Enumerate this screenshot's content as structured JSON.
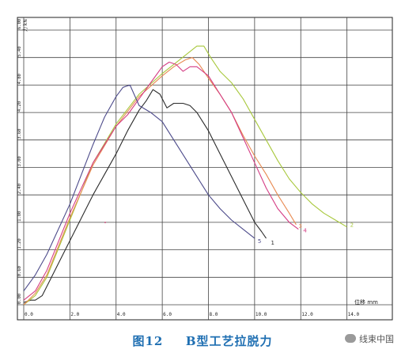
{
  "chart_data": {
    "type": "line",
    "title": "",
    "xlabel": "位移 mm",
    "ylabel": "力 kN",
    "xlim": [
      0,
      16
    ],
    "ylim": [
      0,
      6.0
    ],
    "x_ticks": [
      0,
      2,
      4,
      6,
      8,
      10,
      12,
      14
    ],
    "x_tick_labels": [
      "0.0",
      "2.0",
      "4.0",
      "6.0",
      "8.0",
      "10.0",
      "12.0",
      "14.0"
    ],
    "y_ticks": [
      0,
      0.6,
      1.2,
      1.8,
      2.4,
      3.0,
      3.6,
      4.2,
      4.8,
      5.4,
      6.0
    ],
    "y_tick_labels": [
      "0.00",
      "0.60",
      "1.20",
      "1.80",
      "2.40",
      "3.00",
      "3.60",
      "4.20",
      "4.80",
      "5.40",
      "6.00"
    ],
    "grid": true,
    "series": [
      {
        "name": "1",
        "color": "#2b2b2b",
        "x": [
          0.0,
          0.3,
          0.5,
          0.8,
          1.0,
          1.5,
          2.0,
          2.5,
          3.0,
          3.5,
          4.0,
          4.5,
          5.0,
          5.3,
          5.6,
          5.9,
          6.2,
          6.5,
          6.9,
          7.2,
          7.5,
          8.0,
          8.5,
          9.0,
          9.5,
          10.0,
          10.3,
          10.5
        ],
        "y": [
          0.05,
          0.1,
          0.1,
          0.2,
          0.4,
          0.9,
          1.4,
          1.9,
          2.4,
          2.85,
          3.3,
          3.8,
          4.25,
          4.45,
          4.7,
          4.6,
          4.3,
          4.4,
          4.4,
          4.35,
          4.2,
          3.8,
          3.3,
          2.8,
          2.3,
          1.8,
          1.6,
          1.45
        ]
      },
      {
        "name": "2",
        "color": "#a8c83c",
        "x": [
          0.0,
          0.5,
          1.0,
          2.0,
          3.0,
          4.0,
          5.0,
          6.0,
          7.0,
          7.5,
          7.8,
          8.1,
          8.5,
          9.0,
          9.5,
          10.0,
          10.5,
          11.0,
          11.5,
          12.0,
          12.5,
          13.0,
          13.5,
          14.0
        ],
        "y": [
          0.0,
          0.2,
          0.6,
          1.85,
          3.1,
          3.95,
          4.6,
          5.05,
          5.45,
          5.65,
          5.65,
          5.4,
          5.1,
          4.85,
          4.5,
          4.05,
          3.6,
          3.15,
          2.75,
          2.45,
          2.2,
          2.0,
          1.85,
          1.7
        ]
      },
      {
        "name": "3",
        "color": "#e88a52",
        "x": [
          0.0,
          0.5,
          1.0,
          2.0,
          3.0,
          4.0,
          5.0,
          6.0,
          6.5,
          7.0,
          7.3,
          7.6,
          8.0,
          8.5,
          9.0,
          9.5,
          10.0,
          10.5,
          11.0,
          11.5,
          11.8
        ],
        "y": [
          0.0,
          0.25,
          0.65,
          1.9,
          3.05,
          3.9,
          4.55,
          5.0,
          5.2,
          5.35,
          5.4,
          5.25,
          4.95,
          4.6,
          4.2,
          3.7,
          3.25,
          2.85,
          2.4,
          2.0,
          1.75
        ]
      },
      {
        "name": "4",
        "color": "#d43c84",
        "x": [
          0.0,
          0.5,
          1.0,
          2.0,
          3.0,
          4.0,
          4.5,
          5.0,
          5.5,
          6.0,
          6.3,
          6.6,
          6.9,
          7.2,
          7.5,
          8.0,
          8.5,
          9.0,
          9.5,
          10.0,
          10.5,
          11.0,
          11.5,
          11.9
        ],
        "y": [
          0.1,
          0.3,
          0.75,
          2.0,
          3.1,
          3.9,
          4.15,
          4.5,
          4.85,
          5.2,
          5.3,
          5.25,
          5.1,
          5.2,
          5.2,
          5.0,
          4.6,
          4.2,
          3.65,
          3.1,
          2.55,
          2.1,
          1.8,
          1.65
        ]
      },
      {
        "name": "5",
        "color": "#4c4a8a",
        "x": [
          0.0,
          0.5,
          1.0,
          2.0,
          3.0,
          3.5,
          4.0,
          4.3,
          4.6,
          5.0,
          5.5,
          6.0,
          6.5,
          7.0,
          7.5,
          8.0,
          8.5,
          9.0,
          9.5,
          10.0
        ],
        "y": [
          0.3,
          0.65,
          1.1,
          2.2,
          3.5,
          4.1,
          4.55,
          4.75,
          4.8,
          4.35,
          4.2,
          4.0,
          3.6,
          3.2,
          2.8,
          2.4,
          2.1,
          1.85,
          1.65,
          1.45
        ]
      }
    ],
    "series_labels": [
      "1",
      "2",
      "3",
      "4",
      "5"
    ]
  },
  "caption": {
    "fig_number": "图12",
    "title": "B型工艺拉脱力"
  },
  "watermark": {
    "text": "线束中国"
  }
}
